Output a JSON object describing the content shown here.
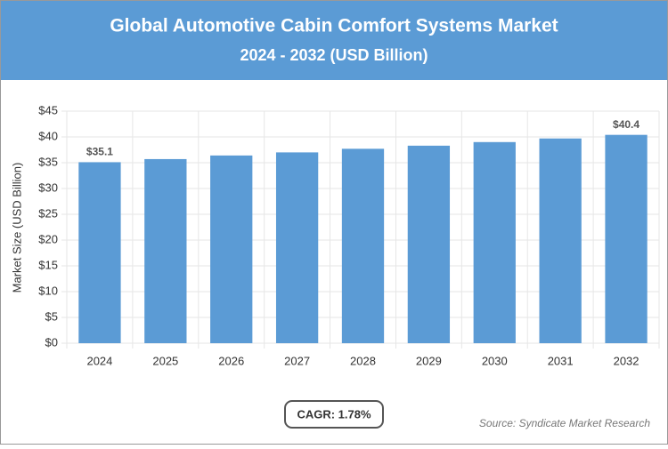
{
  "chart_data": {
    "type": "bar",
    "title": "Global Automotive Cabin Comfort Systems Market",
    "subtitle": "2024 - 2032 (USD Billion)",
    "y_label": "Market Size (USD Billion)",
    "categories": [
      "2024",
      "2025",
      "2026",
      "2027",
      "2028",
      "2029",
      "2030",
      "2031",
      "2032"
    ],
    "values": [
      35.1,
      35.7,
      36.4,
      37.0,
      37.7,
      38.3,
      39.0,
      39.7,
      40.4
    ],
    "value_labels": [
      "$35.1",
      null,
      null,
      null,
      null,
      null,
      null,
      null,
      "$40.4"
    ],
    "color": "#5b9bd5",
    "ylim": [
      0,
      45
    ],
    "yticks": [
      {
        "value": 0,
        "label": "$0"
      },
      {
        "value": 5,
        "label": "$5"
      },
      {
        "value": 10,
        "label": "$10"
      },
      {
        "value": 15,
        "label": "$15"
      },
      {
        "value": 20,
        "label": "$20"
      },
      {
        "value": 25,
        "label": "$25"
      },
      {
        "value": 30,
        "label": "$30"
      },
      {
        "value": 35,
        "label": "$35"
      },
      {
        "value": 40,
        "label": "$40"
      },
      {
        "value": 45,
        "label": "$45"
      }
    ],
    "grid": true,
    "cagr": "CAGR: 1.78%",
    "source": "Source: Syndicate Market Research"
  }
}
